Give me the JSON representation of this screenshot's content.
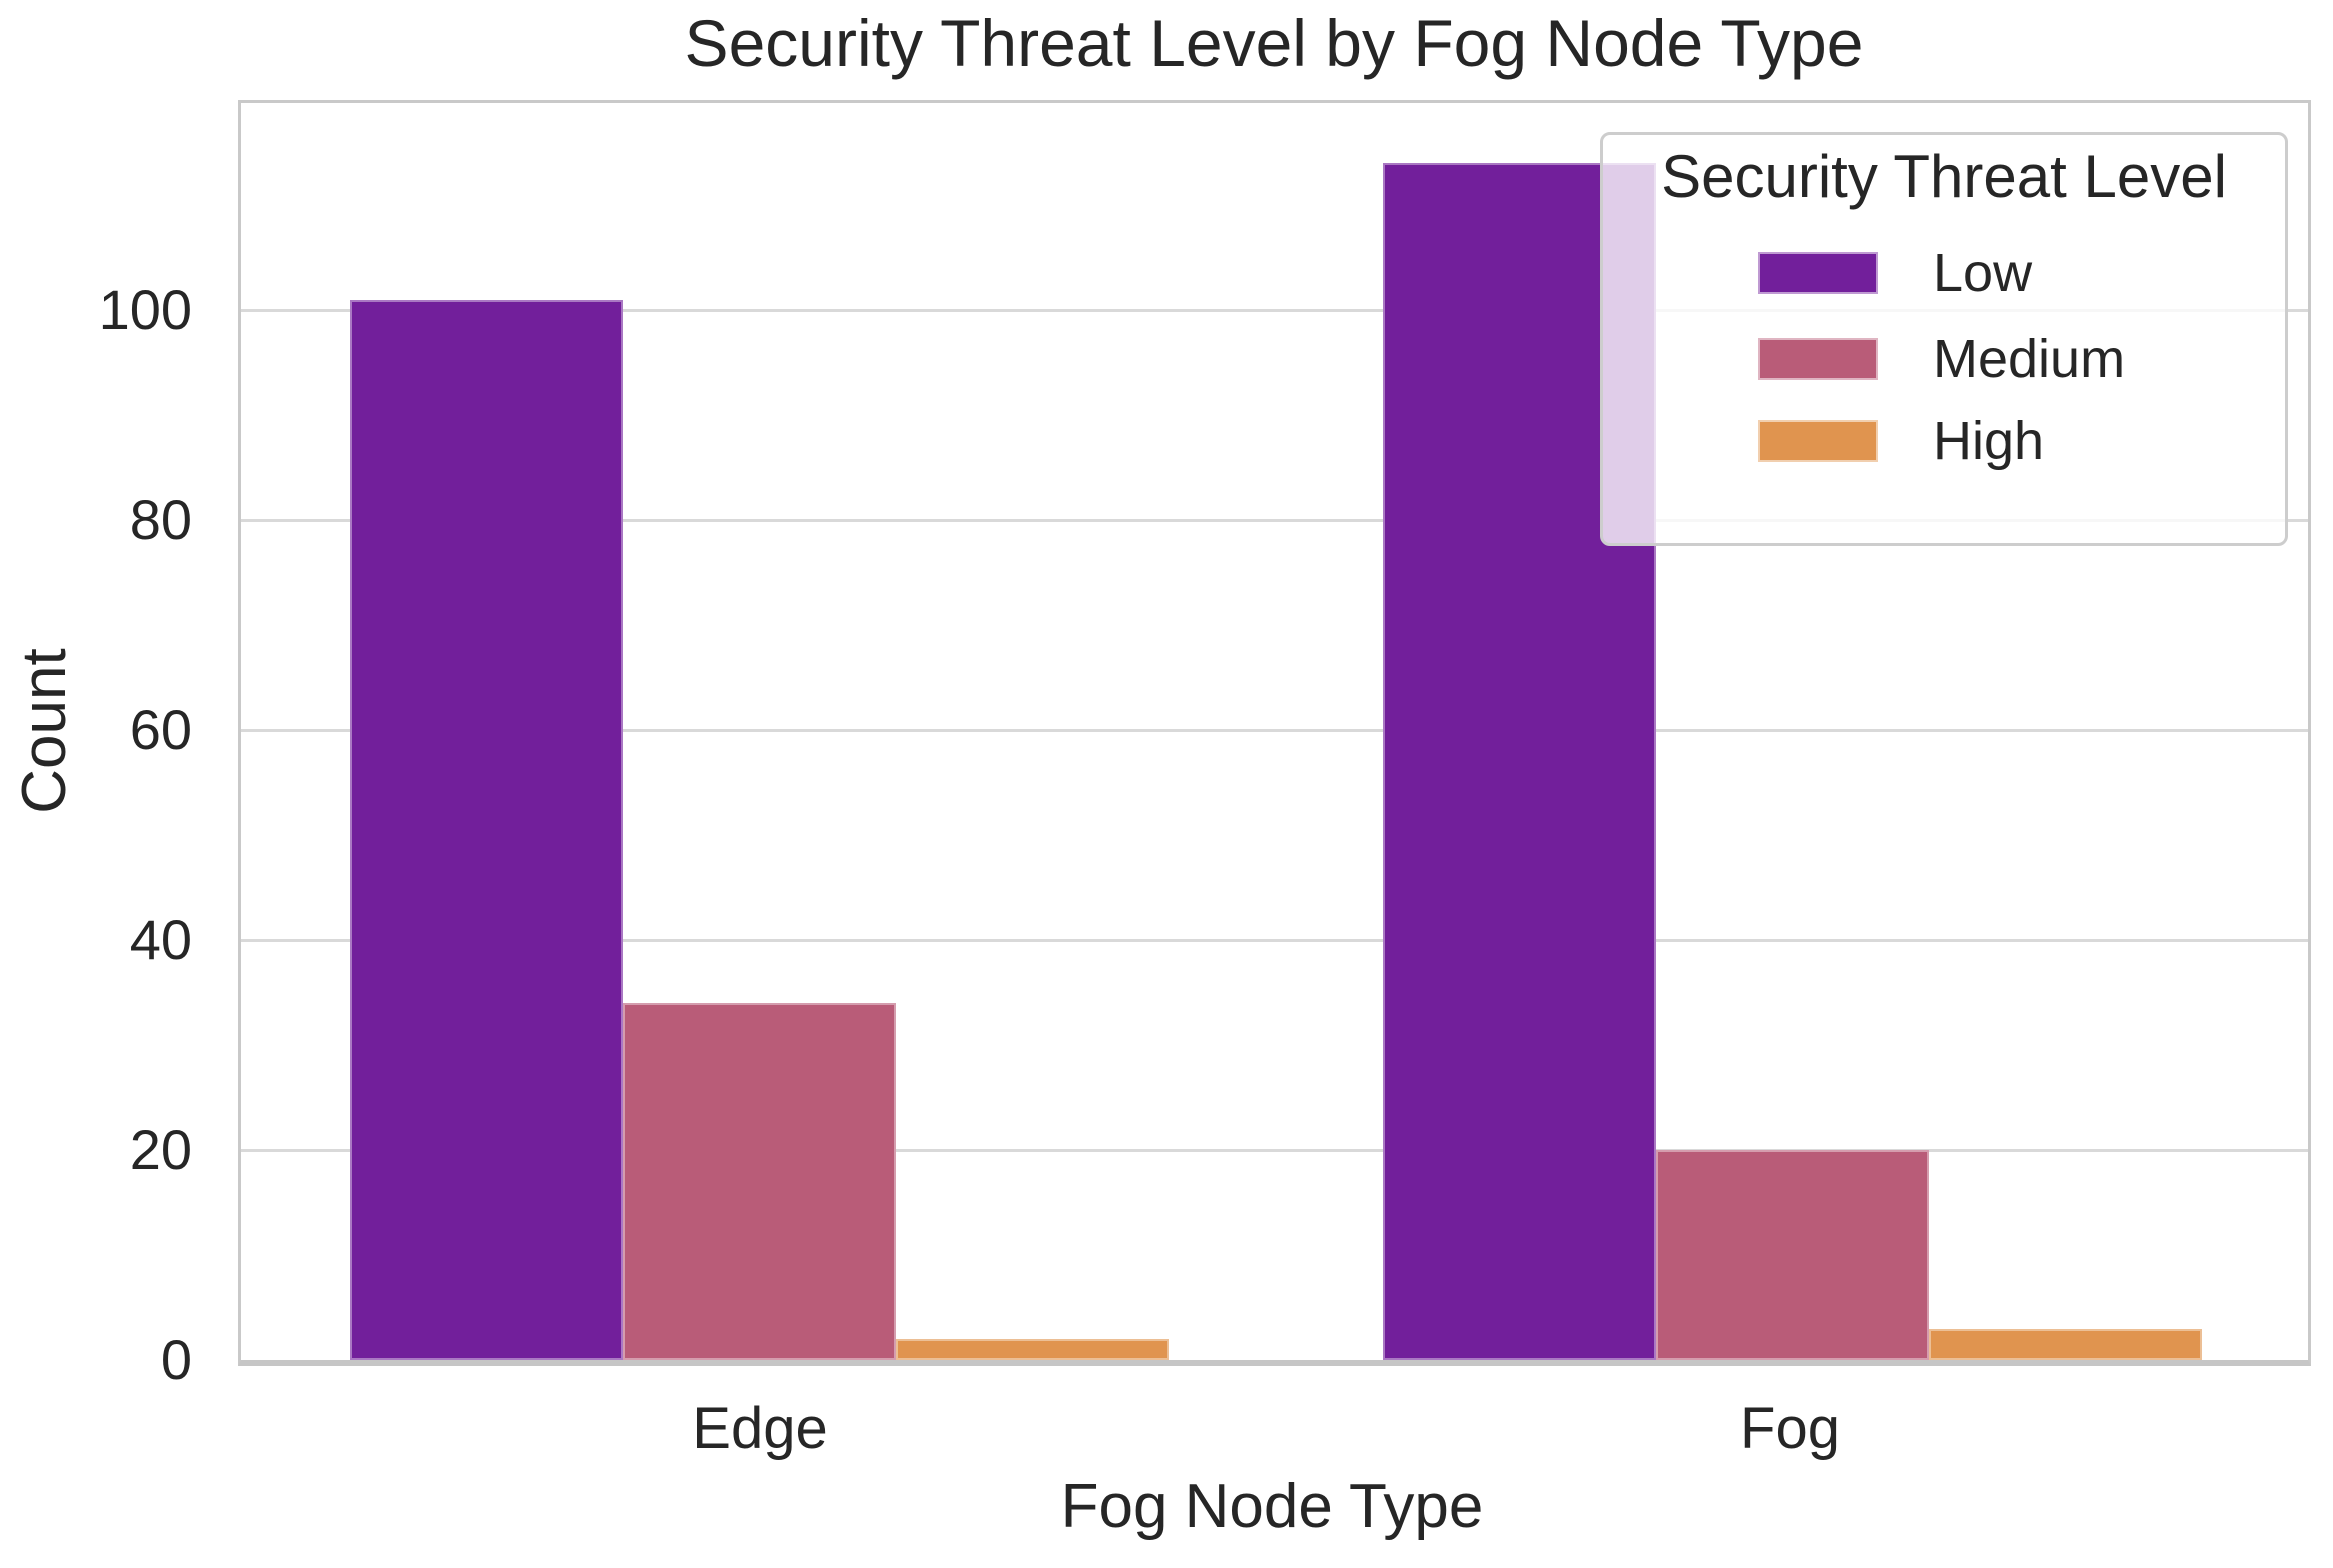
{
  "chart_data": {
    "type": "bar",
    "title": "Security Threat Level by Fog Node Type",
    "xlabel": "Fog Node Type",
    "ylabel": "Count",
    "categories": [
      "Edge",
      "Fog"
    ],
    "series": [
      {
        "name": "Low",
        "color": "#721f9b",
        "values": [
          101,
          114
        ]
      },
      {
        "name": "Medium",
        "color": "#b95c78",
        "values": [
          34,
          20
        ]
      },
      {
        "name": "High",
        "color": "#e0944f",
        "values": [
          2,
          3
        ]
      }
    ],
    "yticks": [
      0,
      20,
      40,
      60,
      80,
      100
    ],
    "ylim": [
      0,
      119.7
    ],
    "grid": "horizontal",
    "legend": {
      "title": "Security Threat Level",
      "position": "upper right"
    },
    "colors": {
      "gridline": "#d9d9d9",
      "spine": "#c9c9c9",
      "text": "#262626",
      "background": "#ffffff"
    }
  }
}
